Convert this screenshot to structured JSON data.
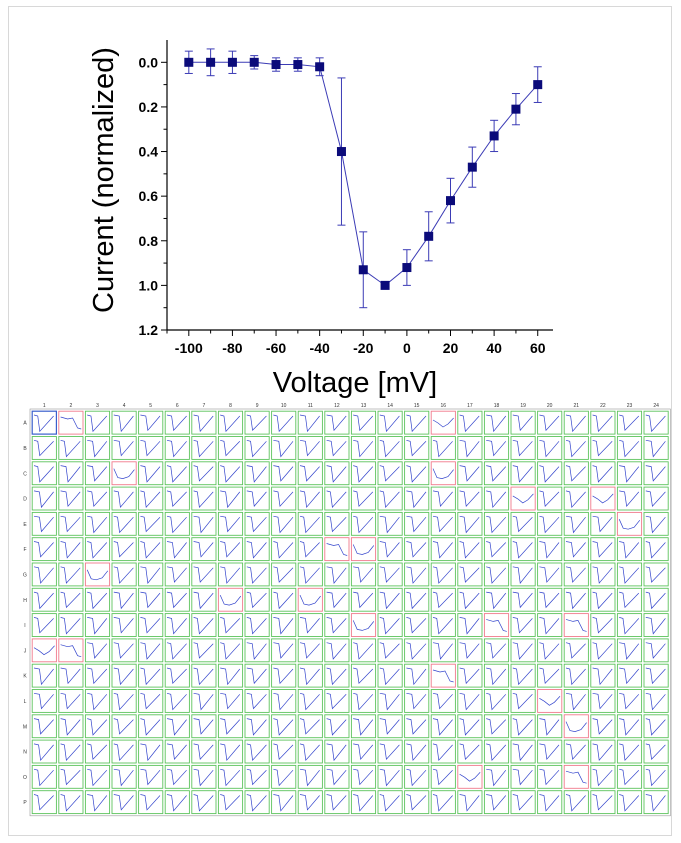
{
  "chart_data": [
    {
      "type": "scatter",
      "title": "",
      "xlabel": "Voltage [mV]",
      "ylabel": "Current (normalized)",
      "xlim": [
        -110,
        67
      ],
      "ylim": [
        1.2,
        -0.1
      ],
      "y_inverted": true,
      "xticks": [
        "-100",
        "-80",
        "-60",
        "-40",
        "-20",
        "0",
        "20",
        "40",
        "60"
      ],
      "xtick_values": [
        -100,
        -80,
        -60,
        -40,
        -20,
        0,
        20,
        40,
        60
      ],
      "yticks": [
        "0.0",
        "0.2",
        "0.4",
        "0.6",
        "0.8",
        "1.0",
        "1.2"
      ],
      "ytick_values": [
        0.0,
        0.2,
        0.4,
        0.6,
        0.8,
        1.0,
        1.2
      ],
      "marker": "square",
      "connected": true,
      "grid": false,
      "series": [
        {
          "x": [
            -100,
            -90,
            -80,
            -70,
            -60,
            -50,
            -40,
            -30,
            -20,
            -10,
            0,
            10,
            20,
            30,
            40,
            50,
            60
          ],
          "y": [
            0.0,
            0.0,
            0.0,
            0.0,
            0.01,
            0.01,
            0.02,
            0.4,
            0.93,
            1.0,
            0.92,
            0.78,
            0.62,
            0.47,
            0.33,
            0.21,
            0.1
          ],
          "yerr": [
            0.05,
            0.06,
            0.05,
            0.03,
            0.03,
            0.03,
            0.04,
            0.33,
            0.17,
            0.0,
            0.08,
            0.11,
            0.1,
            0.09,
            0.07,
            0.07,
            0.08
          ]
        }
      ]
    },
    {
      "type": "heatmap",
      "title": "",
      "columns": [
        "1",
        "2",
        "3",
        "4",
        "5",
        "6",
        "7",
        "8",
        "9",
        "10",
        "11",
        "12",
        "13",
        "14",
        "15",
        "16",
        "17",
        "18",
        "19",
        "20",
        "21",
        "22",
        "23",
        "24"
      ],
      "rows": [
        "A",
        "B",
        "C",
        "D",
        "E",
        "F",
        "G",
        "H",
        "I",
        "J",
        "K",
        "L",
        "M",
        "N",
        "O",
        "P"
      ],
      "failed_wells": [
        "A2",
        "A16",
        "C4",
        "C16",
        "D19",
        "D22",
        "E23",
        "F12",
        "F13",
        "G3",
        "H8",
        "H11",
        "I13",
        "I18",
        "I21",
        "J1",
        "J2",
        "K16",
        "L20",
        "M21",
        "O17",
        "O21"
      ],
      "selected_wells": [
        "A1"
      ],
      "well_status_colors": {
        "passed": "#5cc45c",
        "failed": "#f07a8c",
        "selected": "#3a5fcc"
      },
      "trace_color": "#3344cc"
    }
  ],
  "colors": {
    "marker": "#0b0b7a",
    "line": "#3b3bb5",
    "errorbar": "#3b3bb5",
    "axis": "#000000"
  }
}
